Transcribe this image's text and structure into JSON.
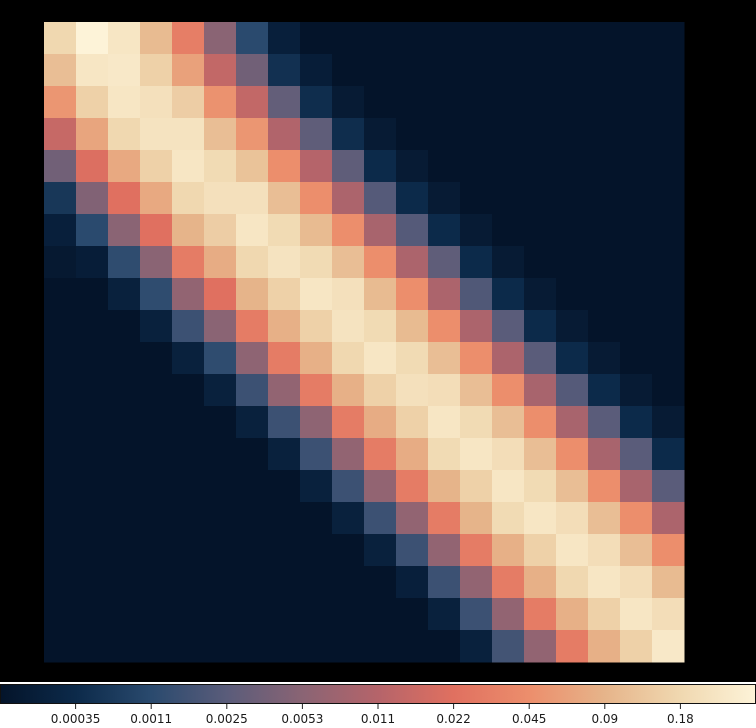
{
  "chart_data": {
    "type": "heatmap",
    "title": "",
    "xlabel": "",
    "ylabel": "",
    "scale": "nonlinear (log-like colorbar)",
    "colormap": [
      "#04142a",
      "#0c2a4a",
      "#2a4a6e",
      "#5a5c7a",
      "#8a6474",
      "#b5646a",
      "#e07060",
      "#ec8e6c",
      "#e6b48a",
      "#f0d8b0",
      "#fdf3d8"
    ],
    "colorbar": {
      "orientation": "horizontal",
      "placement": "bottom",
      "ticks": [
        0.00035,
        0.0011,
        0.0025,
        0.0053,
        0.011,
        0.022,
        0.045,
        0.09,
        0.18
      ],
      "tick_labels": [
        "0.00035",
        "0.0011",
        "0.0025",
        "0.0053",
        "0.011",
        "0.022",
        "0.045",
        "0.09",
        "0.18"
      ],
      "range": [
        0.00011,
        0.36
      ]
    },
    "rows": 20,
    "cols": 20,
    "values": [
      [
        0.18,
        0.36,
        0.255,
        0.103,
        0.031,
        0.0053,
        0.0011,
        0.0002,
        0.0001,
        0.0001,
        0.0001,
        0.0001,
        0.0001,
        0.0001,
        0.0001,
        0.0001,
        0.0001,
        0.0001,
        0.0001,
        0.0001
      ],
      [
        0.11,
        0.255,
        0.273,
        0.156,
        0.064,
        0.0135,
        0.0036,
        0.00044,
        0.00018,
        0.0001,
        0.0001,
        0.0001,
        0.0001,
        0.0001,
        0.0001,
        0.0001,
        0.0001,
        0.0001,
        0.0001,
        0.0001
      ],
      [
        0.052,
        0.156,
        0.255,
        0.222,
        0.146,
        0.048,
        0.0135,
        0.0029,
        0.00039,
        0.00016,
        0.0001,
        0.0001,
        0.0001,
        0.0001,
        0.0001,
        0.0001,
        0.0001,
        0.0001,
        0.0001,
        0.0001
      ],
      [
        0.0145,
        0.068,
        0.18,
        0.238,
        0.238,
        0.11,
        0.052,
        0.0102,
        0.0027,
        0.00039,
        0.00016,
        0.0001,
        0.0001,
        0.0001,
        0.0001,
        0.0001,
        0.0001,
        0.0001,
        0.0001,
        0.0001
      ],
      [
        0.0036,
        0.0205,
        0.073,
        0.156,
        0.255,
        0.193,
        0.119,
        0.045,
        0.011,
        0.0027,
        0.00035,
        0.00016,
        0.0001,
        0.0001,
        0.0001,
        0.0001,
        0.0001,
        0.0001,
        0.0001,
        0.0001
      ],
      [
        0.00055,
        0.0046,
        0.022,
        0.073,
        0.18,
        0.222,
        0.222,
        0.11,
        0.045,
        0.0095,
        0.0023,
        0.00035,
        0.00016,
        0.0001,
        0.0001,
        0.0001,
        0.0001,
        0.0001,
        0.0001,
        0.0001
      ],
      [
        0.0002,
        0.0011,
        0.0053,
        0.022,
        0.09,
        0.146,
        0.255,
        0.193,
        0.103,
        0.045,
        0.0088,
        0.0023,
        0.00035,
        0.00016,
        0.0001,
        0.0001,
        0.0001,
        0.0001,
        0.0001,
        0.0001
      ],
      [
        0.00014,
        0.00018,
        0.0012,
        0.0053,
        0.029,
        0.078,
        0.18,
        0.238,
        0.193,
        0.11,
        0.045,
        0.0095,
        0.0027,
        0.00035,
        0.00016,
        0.0001,
        0.0001,
        0.0001,
        0.0001,
        0.0001
      ],
      [
        0.0001,
        0.0001,
        0.00022,
        0.0012,
        0.0061,
        0.022,
        0.09,
        0.156,
        0.255,
        0.222,
        0.103,
        0.045,
        0.0095,
        0.0021,
        0.00035,
        0.00016,
        0.0001,
        0.0001,
        0.0001,
        0.0001
      ],
      [
        0.0001,
        0.0001,
        0.0001,
        0.00022,
        0.0015,
        0.0053,
        0.029,
        0.084,
        0.156,
        0.238,
        0.193,
        0.103,
        0.045,
        0.0095,
        0.0025,
        0.00035,
        0.00016,
        0.0001,
        0.0001,
        0.0001
      ],
      [
        0.0001,
        0.0001,
        0.0001,
        0.0001,
        0.00022,
        0.0012,
        0.0057,
        0.029,
        0.084,
        0.18,
        0.255,
        0.193,
        0.11,
        0.045,
        0.0095,
        0.0025,
        0.00035,
        0.00016,
        0.0001,
        0.0001
      ],
      [
        0.0001,
        0.0001,
        0.0001,
        0.0001,
        0.0001,
        0.00022,
        0.0015,
        0.0061,
        0.029,
        0.084,
        0.156,
        0.222,
        0.207,
        0.11,
        0.045,
        0.0088,
        0.0023,
        0.00035,
        0.00016,
        0.0001
      ],
      [
        0.0001,
        0.0001,
        0.0001,
        0.0001,
        0.0001,
        0.0001,
        0.00022,
        0.0015,
        0.0057,
        0.029,
        0.078,
        0.156,
        0.255,
        0.193,
        0.11,
        0.045,
        0.0088,
        0.0025,
        0.00035,
        0.00016
      ],
      [
        0.0001,
        0.0001,
        0.0001,
        0.0001,
        0.0001,
        0.0001,
        0.0001,
        0.00022,
        0.0015,
        0.0061,
        0.029,
        0.078,
        0.193,
        0.255,
        0.207,
        0.11,
        0.045,
        0.0088,
        0.0025,
        0.00035
      ],
      [
        0.0001,
        0.0001,
        0.0001,
        0.0001,
        0.0001,
        0.0001,
        0.0001,
        0.0001,
        0.00022,
        0.0015,
        0.0061,
        0.029,
        0.09,
        0.156,
        0.255,
        0.193,
        0.11,
        0.045,
        0.0088,
        0.0025
      ],
      [
        0.0001,
        0.0001,
        0.0001,
        0.0001,
        0.0001,
        0.0001,
        0.0001,
        0.0001,
        0.0001,
        0.00022,
        0.0015,
        0.0061,
        0.029,
        0.09,
        0.193,
        0.255,
        0.207,
        0.11,
        0.045,
        0.0095
      ],
      [
        0.0001,
        0.0001,
        0.0001,
        0.0001,
        0.0001,
        0.0001,
        0.0001,
        0.0001,
        0.0001,
        0.0001,
        0.00022,
        0.0015,
        0.0061,
        0.029,
        0.084,
        0.156,
        0.255,
        0.207,
        0.11,
        0.045
      ],
      [
        0.0001,
        0.0001,
        0.0001,
        0.0001,
        0.0001,
        0.0001,
        0.0001,
        0.0001,
        0.0001,
        0.0001,
        0.0001,
        0.0002,
        0.0015,
        0.0061,
        0.029,
        0.084,
        0.18,
        0.255,
        0.207,
        0.103
      ],
      [
        0.0001,
        0.0001,
        0.0001,
        0.0001,
        0.0001,
        0.0001,
        0.0001,
        0.0001,
        0.0001,
        0.0001,
        0.0001,
        0.0001,
        0.00022,
        0.0015,
        0.0061,
        0.029,
        0.084,
        0.156,
        0.255,
        0.207
      ],
      [
        0.0001,
        0.0001,
        0.0001,
        0.0001,
        0.0001,
        0.0001,
        0.0001,
        0.0001,
        0.0001,
        0.0001,
        0.0001,
        0.0001,
        0.0001,
        0.00022,
        0.0017,
        0.0061,
        0.029,
        0.084,
        0.156,
        0.273
      ]
    ]
  }
}
